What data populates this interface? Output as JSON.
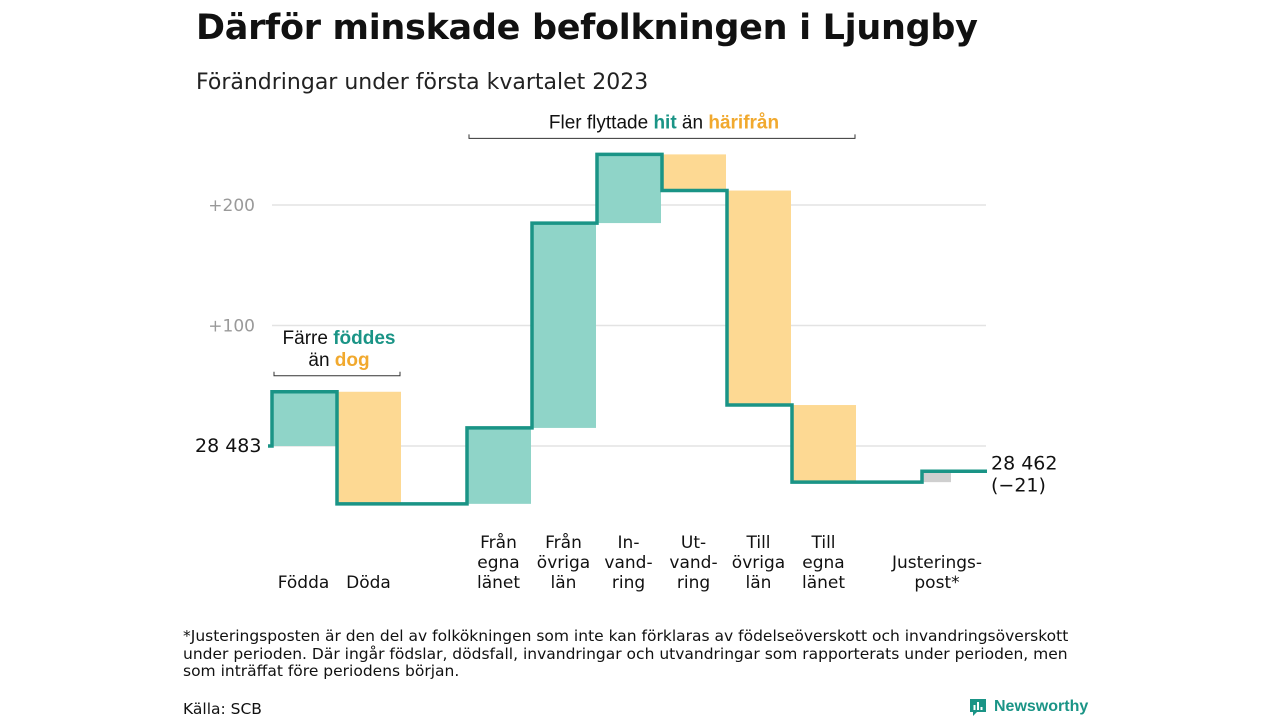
{
  "title": "Därför minskade befolkningen i Ljungby",
  "subtitle": "Förändringar under första kvartalet 2023",
  "footnote": "*Justeringsposten är den del av folkökningen som inte kan förklaras av födelseöverskott och invandringsöverskott under perioden. Där ingår födslar, dödsfall, invandringar och utvandringar som rapporterats under perioden, men som inträffat före periodens början.",
  "source": "Källa: SCB",
  "brand": "Newsworthy",
  "colors": {
    "increase": "#8fd4c8",
    "decrease": "#fdd993",
    "adjustment": "#cfcfcf",
    "line": "#1a9486",
    "grid": "#e3e3e3"
  },
  "chart_data": {
    "type": "bar",
    "subtype": "waterfall",
    "start": {
      "value": 28483,
      "label": "28 483"
    },
    "end": {
      "value": 28462,
      "label": "28 462",
      "change_label": "(−21)"
    },
    "y_ticks": [
      {
        "value": 28583,
        "label": "+100"
      },
      {
        "value": 28683,
        "label": "+200"
      }
    ],
    "ylim": [
      28400,
      28720
    ],
    "grid": true,
    "steps": [
      {
        "label_lines": [
          "Födda"
        ],
        "change": 45,
        "type": "increase"
      },
      {
        "label_lines": [
          "Döda"
        ],
        "change": -93,
        "type": "decrease"
      },
      {
        "label_lines": [],
        "change": 0,
        "type": "gap"
      },
      {
        "label_lines": [
          "Från",
          "egna",
          "länet"
        ],
        "change": 63,
        "type": "increase"
      },
      {
        "label_lines": [
          "Från",
          "övriga",
          "län"
        ],
        "change": 170,
        "type": "increase"
      },
      {
        "label_lines": [
          "In-",
          "vand-",
          "ring"
        ],
        "change": 57,
        "type": "increase"
      },
      {
        "label_lines": [
          "Ut-",
          "vand-",
          "ring"
        ],
        "change": -30,
        "type": "decrease"
      },
      {
        "label_lines": [
          "Till",
          "övriga",
          "län"
        ],
        "change": -178,
        "type": "decrease"
      },
      {
        "label_lines": [
          "Till",
          "egna",
          "länet"
        ],
        "change": -64,
        "type": "decrease"
      },
      {
        "label_lines": [],
        "change": 0,
        "type": "gap"
      },
      {
        "label_lines": [
          "Justerings-",
          "post*"
        ],
        "change": 9,
        "type": "adjustment"
      }
    ],
    "annotations": [
      {
        "lines": [
          [
            "Färre ",
            "föddes"
          ],
          [
            "än ",
            "dog"
          ]
        ],
        "span": [
          0,
          1
        ]
      },
      {
        "lines": [
          [
            "Fler flyttade ",
            "hit",
            " än ",
            "härifrån"
          ]
        ],
        "span": [
          3,
          8
        ]
      }
    ]
  }
}
